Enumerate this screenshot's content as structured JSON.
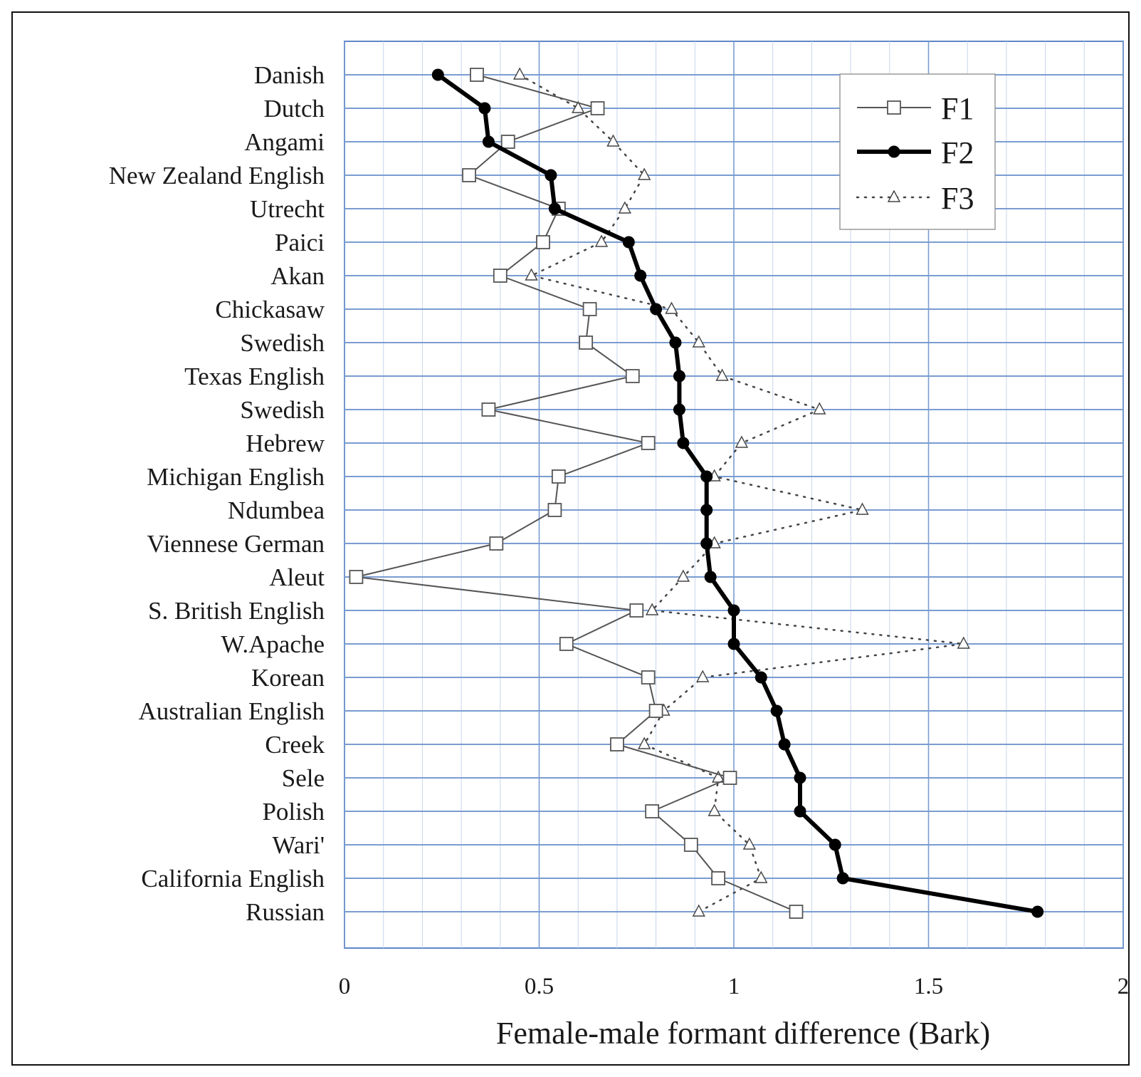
{
  "chart_data": {
    "type": "line",
    "orientation": "horizontal",
    "title": "",
    "xlabel": "Female-male formant difference (Bark)",
    "ylabel": "",
    "xlim": [
      0,
      2
    ],
    "x_ticks": [
      "0",
      "0.5",
      "1",
      "1.5",
      "2"
    ],
    "x_tick_values": [
      0,
      0.5,
      1,
      1.5,
      2
    ],
    "grid": true,
    "legend_position": "top-right",
    "categories": [
      "Danish",
      "Dutch",
      "Angami",
      "New Zealand English",
      "Utrecht",
      "Paici",
      "Akan",
      "Chickasaw",
      "Swedish",
      "Texas English",
      "Swedish",
      "Hebrew",
      "Michigan English",
      "Ndumbea",
      "Viennese German",
      "Aleut",
      "S. British English",
      "W.Apache",
      "Korean",
      "Australian English",
      "Creek",
      "Sele",
      "Polish",
      "Wari'",
      "California English",
      "Russian"
    ],
    "series": [
      {
        "name": "F1",
        "marker": "square",
        "line": "thin-solid",
        "color": "#555555",
        "values": [
          0.34,
          0.65,
          0.42,
          0.32,
          0.55,
          0.51,
          0.4,
          0.63,
          0.62,
          0.74,
          0.37,
          0.78,
          0.55,
          0.54,
          0.39,
          0.03,
          0.75,
          0.57,
          0.78,
          0.8,
          0.7,
          0.99,
          0.79,
          0.89,
          0.96,
          1.16
        ]
      },
      {
        "name": "F2",
        "marker": "circle",
        "line": "thick-solid",
        "color": "#000000",
        "values": [
          0.24,
          0.36,
          0.37,
          0.53,
          0.54,
          0.73,
          0.76,
          0.8,
          0.85,
          0.86,
          0.86,
          0.87,
          0.93,
          0.93,
          0.93,
          0.94,
          1.0,
          1.0,
          1.07,
          1.11,
          1.13,
          1.17,
          1.17,
          1.26,
          1.28,
          1.78
        ]
      },
      {
        "name": "F3",
        "marker": "triangle",
        "line": "dotted",
        "color": "#444444",
        "values": [
          0.45,
          0.6,
          0.69,
          0.77,
          0.72,
          0.66,
          0.48,
          0.84,
          0.91,
          0.97,
          1.22,
          1.02,
          0.95,
          1.33,
          0.95,
          0.87,
          0.79,
          1.59,
          0.92,
          0.82,
          0.77,
          0.96,
          0.95,
          1.04,
          1.07,
          0.91
        ]
      }
    ],
    "colors": {
      "grid": "#7a9cd0",
      "frame": "#5f88c6",
      "minor_grid": "#c7d5ec"
    }
  }
}
